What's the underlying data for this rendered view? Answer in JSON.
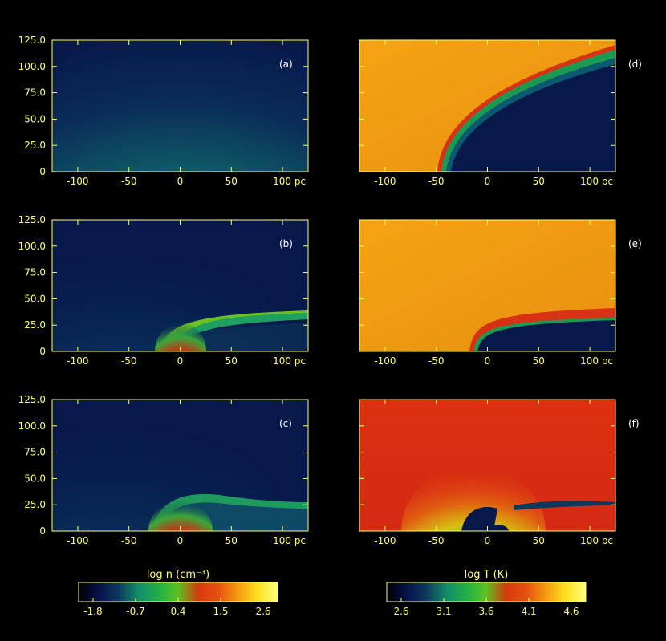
{
  "chart_data": {
    "type": "heatmap",
    "x_ticks": [
      "-100",
      "-50",
      "0",
      "50",
      "100 pc"
    ],
    "x_tick_values": [
      -100,
      -50,
      0,
      50,
      100
    ],
    "xlim": [
      -125,
      125
    ],
    "y_ticks": [
      "0",
      "25.0",
      "50.0",
      "75.0",
      "100.0",
      "125.0"
    ],
    "y_tick_values": [
      0,
      25,
      50,
      75,
      100,
      125
    ],
    "ylim": [
      0,
      125
    ],
    "colorbars": [
      {
        "label": "log n (cm⁻³)",
        "tick_labels": [
          "-1.8",
          "-0.7",
          "0.4",
          "1.5",
          "2.6"
        ],
        "range": [
          -1.8,
          2.6
        ],
        "colors": [
          "#000000",
          "#06124a",
          "#0d3a5c",
          "#138c6a",
          "#1fb04a",
          "#5cc21f",
          "#d63a10",
          "#e65010",
          "#f59a10",
          "#ffe020",
          "#ffff80"
        ]
      },
      {
        "label": "log T (K)",
        "tick_labels": [
          "2.6",
          "3.1",
          "3.6",
          "4.1",
          "4.6"
        ],
        "range": [
          2.6,
          4.6
        ],
        "colors": [
          "#000000",
          "#06124a",
          "#0d3a5c",
          "#138c6a",
          "#1fb04a",
          "#5cc21f",
          "#d63a10",
          "#e65010",
          "#f59a10",
          "#ffe020",
          "#ffff80"
        ]
      }
    ],
    "panels": [
      {
        "label": "(a)",
        "quantity": "log n"
      },
      {
        "label": "(d)",
        "quantity": "log T"
      },
      {
        "label": "(b)",
        "quantity": "log n"
      },
      {
        "label": "(e)",
        "quantity": "log T"
      },
      {
        "label": "(c)",
        "quantity": "log n"
      },
      {
        "label": "(f)",
        "quantity": "log T"
      }
    ]
  }
}
